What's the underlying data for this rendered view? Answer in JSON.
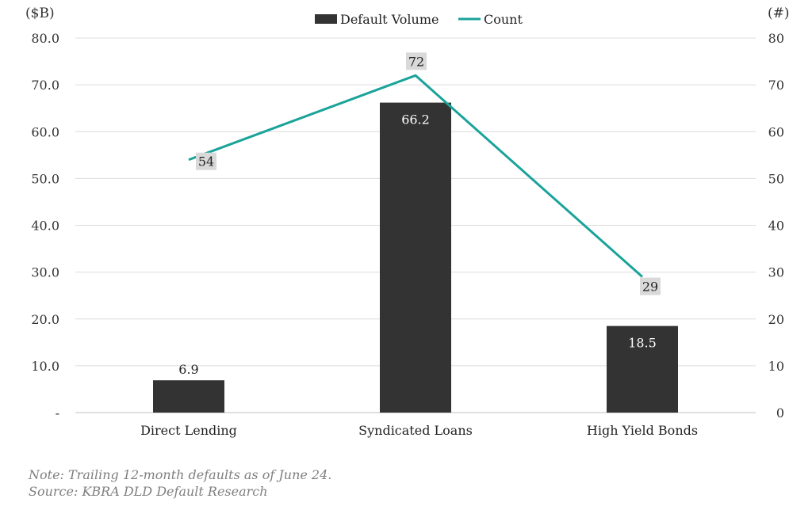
{
  "chart_data": {
    "type": "bar+line",
    "categories": [
      "Direct Lending",
      "Syndicated Loans",
      "High Yield Bonds"
    ],
    "series": [
      {
        "name": "Default Volume",
        "type": "bar",
        "axis": "left",
        "values": [
          6.9,
          66.2,
          18.5
        ],
        "color": "#333333"
      },
      {
        "name": "Count",
        "type": "line",
        "axis": "right",
        "values": [
          54,
          72,
          29
        ],
        "color": "#1aa39a"
      }
    ],
    "left_axis": {
      "label": "($B)",
      "ylim": [
        0,
        80
      ],
      "ticks": [
        "-",
        "10.0",
        "20.0",
        "30.0",
        "40.0",
        "50.0",
        "60.0",
        "70.0",
        "80.0"
      ]
    },
    "right_axis": {
      "label": "(#)",
      "ylim": [
        0,
        80
      ],
      "ticks": [
        "0",
        "10",
        "20",
        "30",
        "40",
        "50",
        "60",
        "70",
        "80"
      ]
    },
    "bar_labels": [
      "6.9",
      "66.2",
      "18.5"
    ],
    "count_labels": [
      "54",
      "72",
      "29"
    ],
    "legend_position": "top-center",
    "grid": true
  },
  "notes": {
    "note": "Note: Trailing 12-month defaults as of June 24.",
    "source": "Source: KBRA DLD Default Research"
  }
}
